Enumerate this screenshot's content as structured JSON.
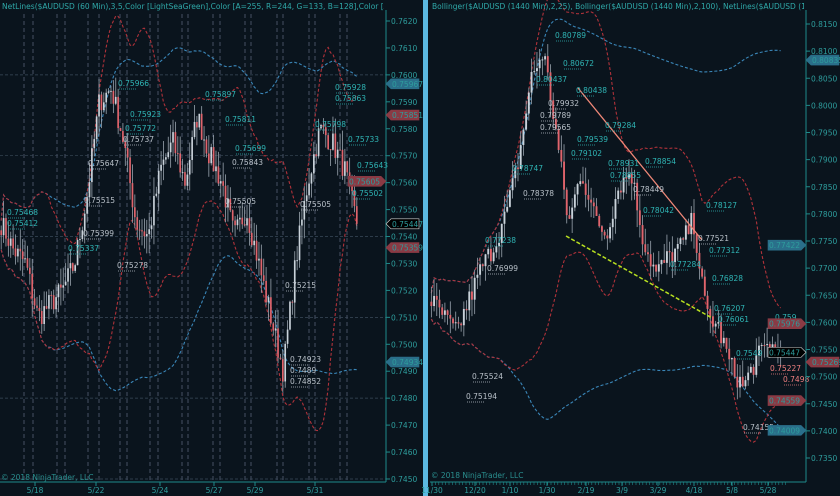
{
  "left_chart": {
    "header": "NetLines($AUDUSD (60 Min),3,5,Color [LightSeaGreen],Color [A=255, R=244, G=133, B=128],Color [A=255, R=0, G=131",
    "copyright": "© 2018 NinjaTrader, LLC",
    "y_ticks": [
      "0.7620",
      "0.7610",
      "0.7600",
      "0.7590",
      "0.7580",
      "0.7570",
      "0.7560",
      "0.7550",
      "0.7540",
      "0.7530",
      "0.7520",
      "0.7510",
      "0.7500",
      "0.7490",
      "0.7480",
      "0.7470",
      "0.7460",
      "0.7450"
    ],
    "x_ticks": [
      "5/18",
      "5/22",
      "5/24",
      "5/27",
      "5/29",
      "5/31"
    ],
    "price_markers": [
      {
        "value": "0.75967",
        "type": "blue"
      },
      {
        "value": "0.75851",
        "type": "red"
      },
      {
        "value": "0.75605",
        "type": "red"
      },
      {
        "value": "0.75447",
        "type": "current"
      },
      {
        "value": "0.75359",
        "type": "red"
      },
      {
        "value": "0.74934",
        "type": "blue"
      }
    ],
    "labels": [
      "0.75966",
      "0.75923",
      "0.75772",
      "0.75737",
      "0.75647",
      "0.75515",
      "0.75468",
      "0.75412",
      "0.75399",
      "0.75337",
      "0.75897",
      "0.75811",
      "0.75699",
      "0.75843",
      "0.75505",
      "0.75928",
      "0.75863",
      "0.75798",
      "0.75733",
      "0.75643",
      "0.75502",
      "0.75505",
      "0.75278",
      "0.75215",
      "0.74923",
      "0.7489",
      "0.74852"
    ]
  },
  "right_chart": {
    "header": "Bollinger($AUDUSD (1440 Min),2,25), Bollinger($AUDUSD (1440 Min),2,100), NetLines($AUDUSD (1440 Min),3,5,Colo",
    "copyright": "© 2018 NinjaTrader, LLC",
    "y_ticks": [
      "0.8150",
      "0.8100",
      "0.8050",
      "0.8000",
      "0.7950",
      "0.7900",
      "0.7850",
      "0.7800",
      "0.7750",
      "0.7700",
      "0.7650",
      "0.7600",
      "0.7550",
      "0.7500",
      "0.7450",
      "0.7400",
      "0.7350"
    ],
    "x_ticks": [
      "11/30",
      "12/20",
      "1/10",
      "1/30",
      "2/19",
      "3/9",
      "3/29",
      "4/18",
      "5/8",
      "5/28"
    ],
    "price_markers": [
      {
        "value": "0.80835",
        "type": "blue"
      },
      {
        "value": "0.77422",
        "type": "blue"
      },
      {
        "value": "0.75976",
        "type": "red"
      },
      {
        "value": "0.75447",
        "type": "current"
      },
      {
        "value": "0.75269",
        "type": "red"
      },
      {
        "value": "0.74559",
        "type": "red"
      },
      {
        "value": "0.74009",
        "type": "blue"
      }
    ],
    "labels": [
      "0.80789",
      "0.80672",
      "0.80437",
      "0.80438",
      "0.79932",
      "0.79789",
      "0.79565",
      "0.79539",
      "0.79284",
      "0.79102",
      "0.78931",
      "0.78855",
      "0.78854",
      "0.78747",
      "0.78449",
      "0.78378",
      "0.78042",
      "0.78127",
      "0.77521",
      "0.77312",
      "0.77284",
      "0.76828",
      "0.76207",
      "0.76061",
      "0.7549",
      "0.759",
      "0.75227",
      "0.7498",
      "0.74155",
      "0.75524",
      "0.75194",
      "0.77238",
      "0.76999"
    ]
  },
  "chart_data": [
    {
      "type": "candlestick",
      "instrument": "$AUDUSD (60 Min)",
      "ylim": [
        0.745,
        0.762
      ],
      "approx_close_path": [
        0.7545,
        0.7535,
        0.753,
        0.751,
        0.7515,
        0.752,
        0.753,
        0.7555,
        0.759,
        0.7595,
        0.7575,
        0.7545,
        0.754,
        0.7565,
        0.7575,
        0.756,
        0.7585,
        0.757,
        0.756,
        0.754,
        0.755,
        0.753,
        0.751,
        0.749,
        0.753,
        0.756,
        0.758,
        0.7575,
        0.7565,
        0.7545
      ],
      "last": 0.75447,
      "grid": true
    },
    {
      "type": "candlestick",
      "instrument": "$AUDUSD (1440 Min)",
      "ylim": [
        0.735,
        0.815
      ],
      "approx_close_path": [
        0.764,
        0.761,
        0.758,
        0.764,
        0.77,
        0.774,
        0.78,
        0.79,
        0.805,
        0.81,
        0.795,
        0.778,
        0.788,
        0.78,
        0.776,
        0.785,
        0.788,
        0.775,
        0.769,
        0.772,
        0.774,
        0.779,
        0.762,
        0.759,
        0.752,
        0.748,
        0.753,
        0.756,
        0.7544
      ],
      "last": 0.75447,
      "indicators": [
        "Bollinger 2,25",
        "Bollinger 2,100"
      ],
      "grid": false
    }
  ],
  "colors": {
    "background": "#0a141d",
    "up": "#c9d2da",
    "down": "#e0646c",
    "cyan": "#2fb4b4",
    "band_red": "#b0323a",
    "band_blue": "#3a86b8",
    "trend_salmon": "#f08878",
    "trend_green": "#b8e020",
    "divider": "#5bb8e0"
  }
}
